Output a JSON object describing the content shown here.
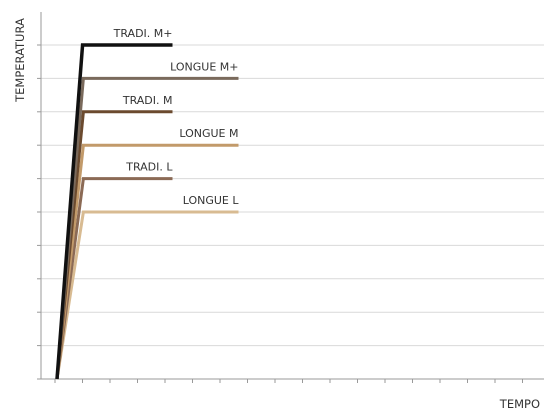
{
  "chart_data": {
    "type": "line",
    "title": "",
    "xlabel": "TEMPO",
    "ylabel": "TEMPERATURA",
    "grid": true,
    "legend": "inline labels at right end of each series",
    "series": [
      {
        "name": "TRADI. M+",
        "color": "#111111",
        "plateau": 10,
        "ramp_end": 1.0,
        "end": 7.0
      },
      {
        "name": "LONGUE M+",
        "color": "#7a6a5c",
        "plateau": 9,
        "ramp_end": 1.0,
        "end": 11.0
      },
      {
        "name": "TRADI. M",
        "color": "#6b4a2e",
        "plateau": 8,
        "ramp_end": 1.0,
        "end": 7.0
      },
      {
        "name": "LONGUE M",
        "color": "#c29a6a",
        "plateau": 7,
        "ramp_end": 1.0,
        "end": 11.0
      },
      {
        "name": "TRADI. L",
        "color": "#8b6a55",
        "plateau": 6,
        "ramp_end": 1.0,
        "end": 7.0
      },
      {
        "name": "LONGUE L",
        "color": "#d8bb92",
        "plateau": 5,
        "ramp_end": 1.0,
        "end": 11.0
      }
    ],
    "xlim": [
      0,
      15
    ],
    "ylim": [
      0,
      11
    ]
  }
}
